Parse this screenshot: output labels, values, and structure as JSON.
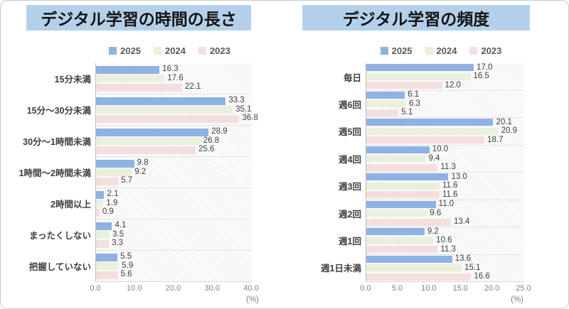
{
  "page": {
    "background": "#ffffff",
    "border_color": "#c9c9c9"
  },
  "colors": {
    "title_band_bg": "#b4d1eb",
    "series_2025": "#8fb2e2",
    "series_2024": "#eaf0dd",
    "series_2023": "#f4dfde",
    "grid_line": "#e3e3e3",
    "axis_text": "#808080"
  },
  "chart_data": [
    {
      "type": "bar",
      "orientation": "horizontal",
      "title": "デジタル学習の時間の長さ",
      "unit_label": "(%)",
      "xlim": [
        0,
        40
      ],
      "xticks": [
        "0.0",
        "10.0",
        "20.0",
        "30.0",
        "40.0"
      ],
      "legend_position": "top",
      "grid": "group-separators-only",
      "categories": [
        "15分未満",
        "15分～30分未満",
        "30分～1時間未満",
        "1時間～2時間未満",
        "2時間以上",
        "まったくしない",
        "把握していない"
      ],
      "series": [
        {
          "name": "2025",
          "color": "#8fb2e2",
          "values": [
            16.3,
            33.3,
            28.9,
            9.8,
            2.1,
            4.1,
            5.5
          ]
        },
        {
          "name": "2024",
          "color": "#eaf0dd",
          "values": [
            17.6,
            35.1,
            26.8,
            9.2,
            1.9,
            3.5,
            5.9
          ]
        },
        {
          "name": "2023",
          "color": "#f4dfde",
          "values": [
            22.1,
            36.8,
            25.6,
            5.7,
            0.9,
            3.3,
            5.6
          ]
        }
      ]
    },
    {
      "type": "bar",
      "orientation": "horizontal",
      "title": "デジタル学習の頻度",
      "unit_label": "(%)",
      "xlim": [
        0,
        25
      ],
      "xticks": [
        "0.0",
        "5.0",
        "10.0",
        "15.0",
        "20.0",
        "25.0"
      ],
      "legend_position": "top",
      "grid": "group-separators-only",
      "categories": [
        "毎日",
        "週6回",
        "週5回",
        "週4回",
        "週3回",
        "週2回",
        "週1回",
        "週1日未満"
      ],
      "series": [
        {
          "name": "2025",
          "color": "#8fb2e2",
          "values": [
            17.0,
            6.1,
            20.1,
            10.0,
            13.0,
            11.0,
            9.2,
            13.6
          ]
        },
        {
          "name": "2024",
          "color": "#eaf0dd",
          "values": [
            16.5,
            6.3,
            20.9,
            9.4,
            11.6,
            9.6,
            10.6,
            15.1
          ]
        },
        {
          "name": "2023",
          "color": "#f4dfde",
          "values": [
            12.0,
            5.1,
            18.7,
            11.3,
            11.6,
            13.4,
            11.3,
            16.6
          ]
        }
      ]
    }
  ]
}
